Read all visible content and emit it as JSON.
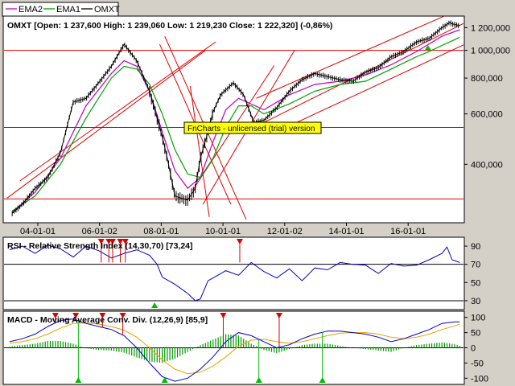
{
  "legend": [
    {
      "label": "EMA2",
      "color": "#c000c0"
    },
    {
      "label": "EMA1",
      "color": "#00a000"
    },
    {
      "label": "OMXT",
      "color": "#000000"
    }
  ],
  "watermark": "FnCharts - unlicensed (trial) version",
  "colors": {
    "trendline": "#e00000",
    "rsi": "#0000cc",
    "macd": "#0000cc",
    "signal": "#e8a000",
    "hist": "#009900",
    "buy": "#00bb00",
    "sell": "#dd0000",
    "ema1": "#00a000",
    "ema2": "#c000c0"
  },
  "chart_data": [
    {
      "type": "line",
      "title": "OMXT [Open: 1 237,600  High: 1 239,060  Low: 1 219,230  Close: 1 222,320] (-0,86%)",
      "yscale": "log",
      "x_tick_labels": [
        "04-01-01",
        "06-01-02",
        "08-01-01",
        "10-01-01",
        "12-01-02",
        "14-01-01",
        "16-01-01"
      ],
      "y_tick_labels": [
        "1 200,000",
        "1 000,000",
        "800,000",
        "600,000",
        "400,000"
      ],
      "y_ticks": [
        1200000,
        1000000,
        800000,
        600000,
        400000
      ],
      "ylim": [
        255000,
        1300000
      ],
      "horizontal_lines": [
        1000000,
        538000,
        303000
      ],
      "trend_lines": [
        [
          [
            0.4,
            350000
          ],
          [
            8.1,
            1070000
          ]
        ],
        [
          [
            -0.1,
            305000
          ],
          [
            7.7,
            1000000
          ]
        ],
        [
          [
            6.1,
            1120000
          ],
          [
            9.3,
            257000
          ]
        ],
        [
          [
            5.9,
            1050000
          ],
          [
            8.7,
            290000
          ]
        ],
        [
          [
            7.1,
            750000
          ],
          [
            7.85,
            262000
          ]
        ],
        [
          [
            7.6,
            290000
          ],
          [
            11.2,
            1000000
          ]
        ],
        [
          [
            7.2,
            325000
          ],
          [
            10.4,
            885000
          ]
        ],
        [
          [
            9.7,
            680000
          ],
          [
            17.7,
            1390000
          ]
        ],
        [
          [
            10.4,
            515000
          ],
          [
            18.0,
            1060000
          ]
        ],
        [
          [
            10.0,
            560000
          ],
          [
            18.0,
            1260000
          ]
        ]
      ],
      "series": [
        {
          "name": "OMXT",
          "x": [
            0.1,
            0.5,
            1,
            1.5,
            2,
            2.5,
            3,
            3.5,
            4,
            4.5,
            5,
            5.5,
            6,
            6.2,
            6.5,
            7,
            7.3,
            7.5,
            7.8,
            8,
            8.3,
            8.8,
            9.2,
            9.6,
            10,
            10.5,
            11,
            11.5,
            12,
            12.5,
            13,
            13.5,
            14,
            14.5,
            15,
            15.5,
            16,
            16.5,
            17,
            17.3,
            17.5,
            17.7
          ],
          "y": [
            270000,
            290000,
            330000,
            360000,
            440000,
            660000,
            680000,
            770000,
            880000,
            1050000,
            920000,
            720000,
            500000,
            420000,
            310000,
            300000,
            330000,
            420000,
            520000,
            610000,
            700000,
            770000,
            700000,
            560000,
            570000,
            630000,
            720000,
            790000,
            830000,
            810000,
            790000,
            780000,
            840000,
            870000,
            950000,
            990000,
            1070000,
            1100000,
            1200000,
            1250000,
            1230000,
            1222320
          ]
        },
        {
          "name": "EMA1",
          "x": [
            0.1,
            1,
            2,
            3,
            4,
            4.5,
            5,
            5.5,
            6,
            6.5,
            7,
            7.5,
            8,
            8.5,
            9,
            9.5,
            10,
            11,
            12,
            13,
            14,
            15,
            16,
            16.5,
            17,
            17.5,
            17.7
          ],
          "y": [
            275000,
            310000,
            400000,
            580000,
            800000,
            880000,
            860000,
            760000,
            600000,
            450000,
            370000,
            360000,
            420000,
            540000,
            640000,
            640000,
            600000,
            650000,
            720000,
            760000,
            780000,
            860000,
            950000,
            990000,
            1040000,
            1090000,
            1110000
          ]
        },
        {
          "name": "EMA2",
          "x": [
            0.1,
            1,
            2,
            3,
            4,
            4.5,
            5,
            5.5,
            6,
            6.5,
            7,
            7.5,
            8,
            8.5,
            9,
            10,
            11,
            12,
            13,
            14,
            15,
            16,
            17,
            17.7
          ],
          "y": [
            272000,
            320000,
            420000,
            640000,
            830000,
            920000,
            880000,
            720000,
            520000,
            380000,
            330000,
            360000,
            480000,
            620000,
            680000,
            620000,
            700000,
            760000,
            780000,
            820000,
            890000,
            990000,
            1120000,
            1180000
          ]
        }
      ],
      "annotations": [
        {
          "type": "buy",
          "x": 16.45
        }
      ]
    },
    {
      "type": "line",
      "title": "RSI - Relative Strength Index (14,30,70) [73,24]",
      "ylim": [
        22,
        98
      ],
      "y_ticks": [
        90,
        70,
        50,
        30
      ],
      "reference_lines": [
        70,
        30
      ],
      "series": [
        {
          "name": "RSI",
          "x": [
            0,
            0.5,
            1,
            1.5,
            2,
            2.5,
            3,
            3.5,
            4,
            4.5,
            5,
            5.5,
            5.8,
            6,
            6.5,
            7,
            7.3,
            7.5,
            7.8,
            8,
            8.5,
            9,
            9.5,
            10,
            10.5,
            11,
            11.5,
            12,
            12.5,
            13,
            13.5,
            14,
            14.5,
            15,
            15.5,
            16,
            16.5,
            17,
            17.2,
            17.4,
            17.7
          ],
          "y": [
            86,
            90,
            82,
            91,
            87,
            78,
            90,
            85,
            77,
            82,
            86,
            80,
            70,
            56,
            48,
            38,
            30,
            32,
            52,
            55,
            63,
            58,
            72,
            62,
            55,
            65,
            52,
            66,
            64,
            72,
            70,
            69,
            60,
            71,
            68,
            69,
            75,
            82,
            89,
            75,
            72
          ]
        }
      ],
      "annotations": [
        {
          "type": "sell",
          "x": 3.6
        },
        {
          "type": "sell",
          "x": 3.9
        },
        {
          "type": "sell",
          "x": 4.05
        },
        {
          "type": "sell",
          "x": 4.35
        },
        {
          "type": "sell",
          "x": 4.55
        },
        {
          "type": "sell",
          "x": 9.05
        },
        {
          "type": "buy",
          "x": 5.7
        }
      ]
    },
    {
      "type": "line",
      "title": "MACD - Moving Average Conv. Div. (12,26,9) [85,9]",
      "ylim": [
        -115,
        115
      ],
      "y_ticks": [
        100,
        50,
        0,
        -50,
        -100
      ],
      "series": [
        {
          "name": "MACD",
          "x": [
            0,
            0.5,
            1,
            1.5,
            2,
            2.5,
            3,
            3.5,
            4,
            4.5,
            5,
            5.5,
            6,
            6.5,
            7,
            7.5,
            8,
            8.5,
            9,
            9.5,
            10,
            10.5,
            11,
            11.5,
            12,
            12.5,
            13,
            13.5,
            14,
            14.5,
            15,
            15.5,
            16,
            16.5,
            17,
            17.5,
            17.7
          ],
          "y": [
            20,
            30,
            45,
            70,
            90,
            95,
            80,
            70,
            60,
            40,
            0,
            -50,
            -95,
            -110,
            -100,
            -70,
            -30,
            20,
            50,
            40,
            20,
            0,
            10,
            30,
            45,
            55,
            55,
            50,
            45,
            35,
            20,
            30,
            45,
            60,
            80,
            85,
            85
          ]
        },
        {
          "name": "Signal",
          "x": [
            0,
            0.5,
            1,
            1.5,
            2,
            2.5,
            3,
            3.5,
            4,
            4.5,
            5,
            5.5,
            6,
            6.5,
            7,
            7.5,
            8,
            8.5,
            9,
            9.5,
            10,
            10.5,
            11,
            11.5,
            12,
            12.5,
            13,
            13.5,
            14,
            14.5,
            15,
            15.5,
            16,
            16.5,
            17,
            17.5,
            17.7
          ],
          "y": [
            15,
            20,
            30,
            45,
            65,
            80,
            82,
            78,
            70,
            58,
            35,
            0,
            -40,
            -70,
            -85,
            -80,
            -60,
            -30,
            5,
            25,
            28,
            20,
            15,
            20,
            30,
            40,
            48,
            50,
            50,
            45,
            35,
            30,
            35,
            45,
            60,
            72,
            78
          ]
        }
      ],
      "annotations": [
        {
          "type": "sell",
          "x": 1.8
        },
        {
          "type": "sell",
          "x": 2.6
        },
        {
          "type": "sell",
          "x": 3.65
        },
        {
          "type": "sell",
          "x": 4.45
        },
        {
          "type": "sell",
          "x": 8.4
        },
        {
          "type": "sell",
          "x": 10.6
        },
        {
          "type": "buy",
          "x": 2.7
        },
        {
          "type": "buy",
          "x": 6.1
        },
        {
          "type": "buy",
          "x": 9.8
        },
        {
          "type": "buy",
          "x": 12.3
        }
      ]
    }
  ]
}
